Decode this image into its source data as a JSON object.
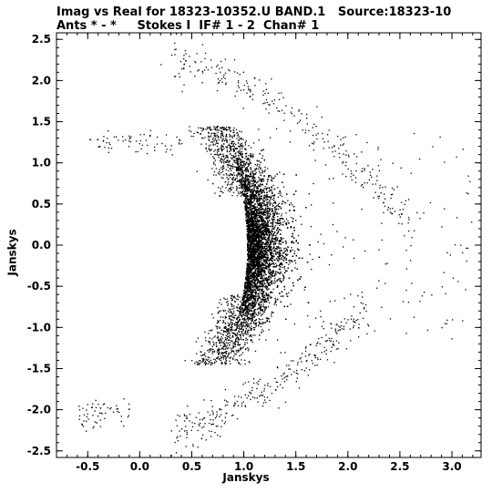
{
  "chart_data": {
    "type": "scatter",
    "title": "Imag vs Real for 18323-10352.U BAND.1   Source:18323-10",
    "subtitle": "Ants * - *     Stokes I  IF# 1 - 2  Chan# 1",
    "xlabel": "Janskys",
    "ylabel": "Janskys",
    "xlim": [
      -0.8,
      3.28
    ],
    "ylim": [
      -2.58,
      2.58
    ],
    "xticks": [
      "-0.5",
      "0.0",
      "0.5",
      "1.0",
      "1.5",
      "2.0",
      "2.5",
      "3.0"
    ],
    "yticks": [
      "2.5",
      "2.0",
      "1.5",
      "1.0",
      "0.5",
      "0.0",
      "-0.5",
      "-1.0",
      "-1.5",
      "-2.0",
      "-2.5"
    ],
    "grid": false,
    "marker_color": "#000000",
    "series": [
      {
        "description": "dense crescent core",
        "x": [
          1.1,
          1.15,
          1.2,
          1.05,
          1.25,
          1.12,
          1.18,
          1.08,
          1.22,
          1.14,
          0.98,
          1.3,
          1.16,
          1.02,
          1.24,
          1.11,
          1.19,
          1.07,
          1.27,
          1.13
        ],
        "y": [
          0.0,
          0.2,
          -0.2,
          0.4,
          -0.35,
          0.55,
          -0.55,
          -0.7,
          0.7,
          -0.1,
          0.85,
          0.1,
          -0.85,
          0.3,
          -0.45,
          0.65,
          -0.65,
          -0.3,
          0.25,
          0.05
        ]
      },
      {
        "description": "outer arc points",
        "x": [
          0.2,
          0.4,
          0.6,
          0.8,
          1.0,
          1.2,
          1.4,
          1.6,
          1.8,
          2.0,
          2.2,
          2.4,
          0.3,
          0.5,
          0.7,
          0.9,
          1.1,
          1.3,
          1.5,
          1.7,
          1.9,
          2.1,
          -0.4,
          -0.3,
          -0.1,
          0.0,
          0.1,
          2.6,
          2.8,
          3.0
        ],
        "y": [
          2.2,
          2.15,
          2.1,
          2.05,
          1.95,
          1.85,
          1.7,
          1.55,
          1.35,
          1.1,
          0.8,
          0.45,
          -2.25,
          -2.15,
          -2.05,
          -1.95,
          -1.85,
          -1.75,
          -1.65,
          -1.45,
          -1.25,
          -1.0,
          1.2,
          1.25,
          1.3,
          1.35,
          1.4,
          0.0,
          -0.6,
          -0.9
        ]
      }
    ]
  }
}
